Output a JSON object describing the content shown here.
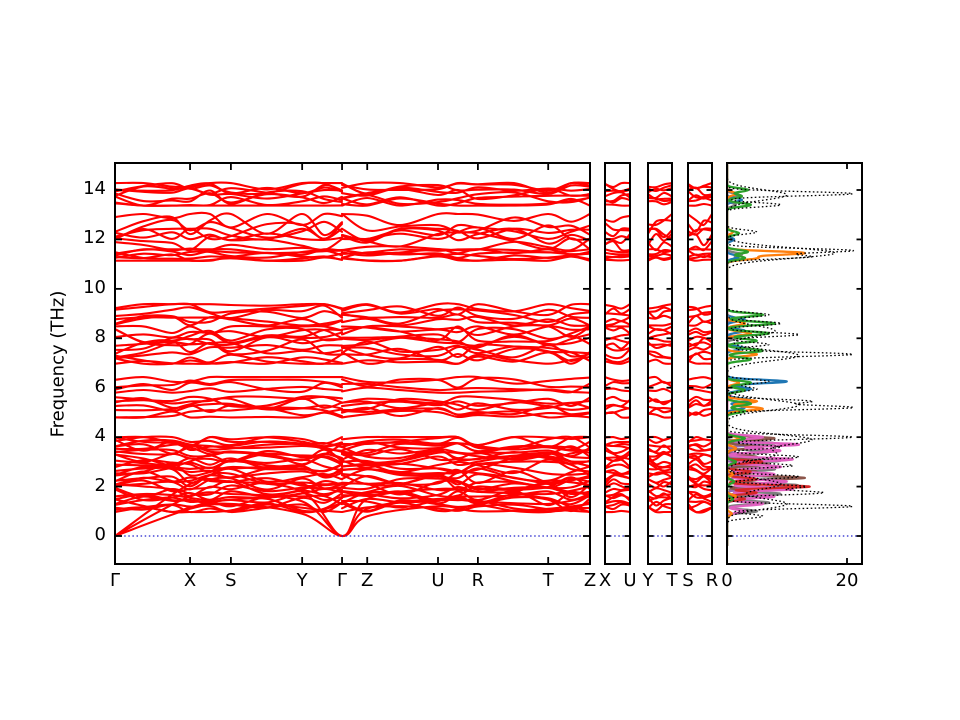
{
  "chart_data": {
    "type": "line",
    "subtype": "phonon-band-structure-with-projected-dos",
    "title": "",
    "ylabel": "Frequency (THz)",
    "ylim": [
      -1.15,
      15.1
    ],
    "yticks": [
      0,
      2,
      4,
      6,
      8,
      10,
      12,
      14
    ],
    "band_color": "#ff0000",
    "zero_line_color": "#2222cc",
    "frame_color": "#000000",
    "kpath_main": {
      "labels": [
        "Γ",
        "X",
        "S",
        "Y",
        "Γ",
        "Z",
        "U",
        "R",
        "T",
        "Z"
      ],
      "positions": [
        0,
        0.158,
        0.244,
        0.394,
        0.478,
        0.531,
        0.68,
        0.764,
        0.912,
        1.0
      ],
      "discontinuity_at": 0.478
    },
    "extra_segments": [
      {
        "labels": [
          "X",
          "U"
        ]
      },
      {
        "labels": [
          "Y",
          "T"
        ]
      },
      {
        "labels": [
          "S",
          "R"
        ]
      }
    ],
    "dos_axis": {
      "xticks": [
        0,
        20
      ],
      "xlim": [
        0,
        22.4
      ],
      "xlabel": ""
    },
    "band_clusters": [
      {
        "lo": 13.35,
        "hi": 14.3,
        "n": 9,
        "amp": 0.28
      },
      {
        "lo": 12.0,
        "hi": 13.05,
        "n": 4,
        "amp": 0.5
      },
      {
        "lo": 11.55,
        "hi": 12.45,
        "n": 4,
        "amp": 0.4
      },
      {
        "lo": 11.12,
        "hi": 11.62,
        "n": 6,
        "amp": 0.16
      },
      {
        "lo": 8.5,
        "hi": 9.4,
        "n": 6,
        "amp": 0.3
      },
      {
        "lo": 6.95,
        "hi": 8.5,
        "n": 12,
        "amp": 0.33
      },
      {
        "lo": 5.78,
        "hi": 6.45,
        "n": 4,
        "amp": 0.22
      },
      {
        "lo": 4.78,
        "hi": 5.65,
        "n": 7,
        "amp": 0.24
      },
      {
        "lo": 0.95,
        "hi": 4.02,
        "n": 34,
        "amp": 0.3
      }
    ],
    "acoustic_bands": {
      "fracs": [
        0,
        0.158,
        0.244,
        0.394,
        0.478,
        0.531,
        0.68,
        0.764,
        0.912,
        1.0
      ],
      "bands": [
        [
          0,
          1.1,
          1.3,
          0.9,
          0,
          0.8,
          1.2,
          1.0,
          1.1,
          1.3
        ],
        [
          0,
          1.6,
          1.7,
          1.4,
          0,
          1.1,
          1.5,
          1.4,
          1.3,
          1.6
        ],
        [
          0,
          2.1,
          2.2,
          1.8,
          0,
          1.5,
          1.9,
          1.8,
          1.7,
          2.0
        ]
      ]
    },
    "dos_series": [
      {
        "name": "dos-gray",
        "color": "#7f7f7f",
        "style": "solid",
        "lw": 2.4,
        "w": 0.09,
        "peaks": [
          [
            13.8,
            2
          ],
          [
            13.4,
            1.5
          ],
          [
            11.4,
            2.5
          ],
          [
            11.2,
            2
          ],
          [
            8.8,
            1.5
          ],
          [
            8.0,
            1.5
          ],
          [
            3.75,
            8
          ],
          [
            3.4,
            7
          ],
          [
            3.05,
            9
          ],
          [
            2.7,
            8
          ],
          [
            2.35,
            10
          ],
          [
            2.05,
            12
          ],
          [
            1.7,
            9
          ],
          [
            1.35,
            7
          ],
          [
            1.0,
            5
          ]
        ]
      },
      {
        "name": "dos-purple",
        "color": "#9467bd",
        "style": "solid",
        "lw": 2.0,
        "w": 0.08,
        "peaks": [
          [
            3.7,
            5
          ],
          [
            3.3,
            3
          ],
          [
            2.9,
            3
          ],
          [
            2.4,
            2
          ],
          [
            1.9,
            2
          ],
          [
            1.5,
            1.5
          ]
        ]
      },
      {
        "name": "dos-brown",
        "color": "#8c564b",
        "style": "solid",
        "lw": 2.2,
        "w": 0.09,
        "peaks": [
          [
            3.95,
            8
          ],
          [
            3.6,
            6
          ],
          [
            3.2,
            5
          ],
          [
            2.9,
            7
          ],
          [
            2.6,
            5
          ],
          [
            2.35,
            13
          ],
          [
            2.1,
            6
          ],
          [
            1.8,
            4
          ]
        ]
      },
      {
        "name": "dos-pink",
        "color": "#e060c0",
        "style": "solid",
        "lw": 2.4,
        "w": 0.09,
        "peaks": [
          [
            5.6,
            1
          ],
          [
            4.0,
            6
          ],
          [
            3.7,
            12
          ],
          [
            3.45,
            9
          ],
          [
            3.1,
            11
          ],
          [
            2.8,
            9
          ],
          [
            2.5,
            8
          ],
          [
            2.2,
            10
          ],
          [
            1.9,
            11
          ],
          [
            1.6,
            8
          ],
          [
            1.3,
            6
          ],
          [
            1.0,
            3
          ]
        ]
      },
      {
        "name": "dos-red",
        "color": "#d62728",
        "style": "solid",
        "lw": 2.2,
        "w": 0.08,
        "peaks": [
          [
            3.0,
            6
          ],
          [
            2.6,
            4
          ],
          [
            2.3,
            5
          ],
          [
            2.0,
            14
          ],
          [
            1.75,
            5
          ],
          [
            1.5,
            3
          ]
        ]
      },
      {
        "name": "dos-blue",
        "color": "#1f77b4",
        "style": "solid",
        "lw": 2.2,
        "w": 0.1,
        "peaks": [
          [
            13.6,
            2.5
          ],
          [
            12.0,
            1.2
          ],
          [
            11.3,
            2
          ],
          [
            8.75,
            3
          ],
          [
            8.3,
            3
          ],
          [
            7.6,
            3
          ],
          [
            6.25,
            10
          ],
          [
            5.95,
            4
          ],
          [
            5.5,
            4
          ],
          [
            5.2,
            3
          ],
          [
            1.5,
            1
          ]
        ]
      },
      {
        "name": "dos-orange",
        "color": "#ff7f0e",
        "style": "solid",
        "lw": 2.3,
        "w": 0.1,
        "peaks": [
          [
            13.85,
            1.5
          ],
          [
            12.3,
            1
          ],
          [
            11.45,
            13
          ],
          [
            11.25,
            5
          ],
          [
            8.6,
            3
          ],
          [
            8.2,
            4
          ],
          [
            7.35,
            5
          ],
          [
            6.2,
            2
          ],
          [
            5.45,
            5
          ],
          [
            5.15,
            6
          ],
          [
            3.95,
            2
          ],
          [
            3.55,
            1.5
          ],
          [
            2.5,
            1
          ],
          [
            1.6,
            1.5
          ],
          [
            0.9,
            0.8
          ]
        ]
      },
      {
        "name": "dos-green",
        "color": "#2ca02c",
        "style": "solid",
        "lw": 2.3,
        "w": 0.1,
        "peaks": [
          [
            14.0,
            3.5
          ],
          [
            13.75,
            2.5
          ],
          [
            13.4,
            4
          ],
          [
            12.25,
            2
          ],
          [
            11.5,
            3.5
          ],
          [
            11.25,
            3
          ],
          [
            8.95,
            6
          ],
          [
            8.6,
            8
          ],
          [
            8.2,
            7
          ],
          [
            7.9,
            5
          ],
          [
            7.5,
            6
          ],
          [
            7.15,
            4
          ],
          [
            6.2,
            4
          ],
          [
            5.9,
            3
          ],
          [
            5.35,
            4
          ],
          [
            5.05,
            3
          ],
          [
            3.95,
            3
          ],
          [
            3.0,
            1.5
          ],
          [
            2.2,
            1.2
          ],
          [
            1.5,
            1
          ]
        ]
      },
      {
        "name": "dos-total-a",
        "color": "#000000",
        "style": "dotted",
        "lw": 1.3,
        "w": 0.12,
        "peaks": [
          [
            13.85,
            21
          ],
          [
            13.4,
            9
          ],
          [
            12.3,
            5
          ],
          [
            11.55,
            21
          ],
          [
            11.3,
            14
          ],
          [
            8.95,
            7
          ],
          [
            8.6,
            9
          ],
          [
            8.15,
            12
          ],
          [
            7.75,
            7
          ],
          [
            7.35,
            21
          ],
          [
            6.25,
            7
          ],
          [
            5.95,
            5
          ],
          [
            5.45,
            14
          ],
          [
            5.2,
            21
          ],
          [
            4.0,
            21
          ],
          [
            3.6,
            9
          ],
          [
            3.2,
            12
          ],
          [
            2.85,
            11
          ],
          [
            2.4,
            12
          ],
          [
            2.0,
            13
          ],
          [
            1.75,
            16
          ],
          [
            1.2,
            21
          ],
          [
            0.8,
            6
          ]
        ]
      },
      {
        "name": "dos-total-b",
        "color": "#000000",
        "style": "dotted",
        "lw": 1.3,
        "w": 0.3,
        "peaks": [
          [
            13.8,
            10
          ],
          [
            11.45,
            18
          ],
          [
            8.3,
            8
          ],
          [
            7.3,
            12
          ],
          [
            5.3,
            12
          ],
          [
            3.9,
            14
          ],
          [
            3.3,
            8
          ],
          [
            2.1,
            9
          ],
          [
            1.3,
            10
          ]
        ]
      }
    ]
  }
}
